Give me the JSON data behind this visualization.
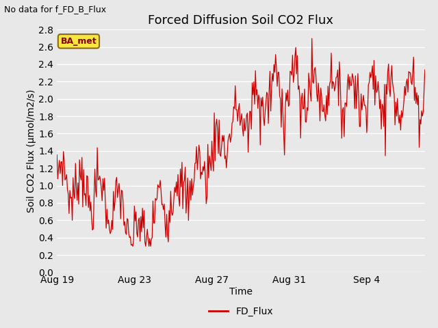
{
  "title": "Forced Diffusion Soil CO2 Flux",
  "xlabel": "Time",
  "ylabel": "Soil CO2 Flux (μmol/m2/s)",
  "no_data_text": "No data for f_FD_B_Flux",
  "legend_label": "FD_Flux",
  "legend_line_color": "#cc0000",
  "line_color": "#cc0000",
  "background_color": "#e8e8e8",
  "plot_bg_color": "#e8e8e8",
  "ylim": [
    0.0,
    2.8
  ],
  "yticks": [
    0.0,
    0.2,
    0.4,
    0.6,
    0.8,
    1.0,
    1.2,
    1.4,
    1.6,
    1.8,
    2.0,
    2.2,
    2.4,
    2.6,
    2.8
  ],
  "xtick_labels": [
    "Aug 19",
    "Aug 23",
    "Aug 27",
    "Aug 31",
    "Sep 4"
  ],
  "ba_met_label": "BA_met",
  "title_fontsize": 13,
  "label_fontsize": 10,
  "tick_fontsize": 10,
  "seed": 7
}
